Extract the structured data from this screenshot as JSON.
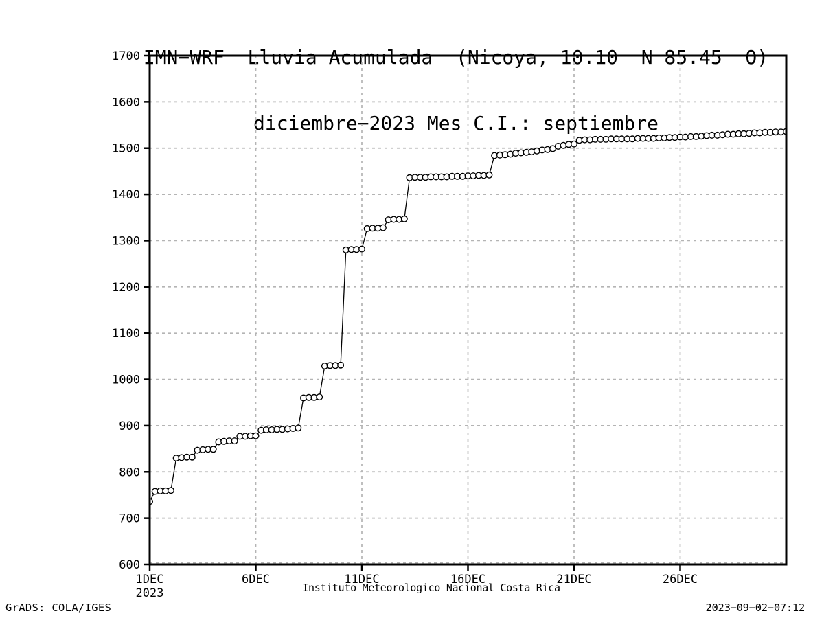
{
  "colors": {
    "foreground": "#000000",
    "background": "#ffffff",
    "gridline": "#b4b4b4",
    "marker_fill": "#ffffff"
  },
  "footer": {
    "credit": "GrADS: COLA/IGES",
    "timestamp": "2023−09−02−07:12"
  },
  "chart_data": {
    "type": "line",
    "title": "IMN−WRF  Lluvia Acumulada  (Nicoya, 10.10  N 85.45  O)",
    "subtitle": "diciembre−2023 Mes C.I.: septiembre",
    "xlabel": "Instituto Meteorologico Nacional Costa Rica",
    "ylabel": "",
    "grid": "dashed",
    "legend": "none",
    "marker": "open-circle",
    "x_axis": {
      "range_days": [
        1,
        31
      ],
      "year": "2023",
      "ticks": [
        {
          "day": 1,
          "label": "1DEC"
        },
        {
          "day": 6,
          "label": "6DEC"
        },
        {
          "day": 11,
          "label": "11DEC"
        },
        {
          "day": 16,
          "label": "16DEC"
        },
        {
          "day": 21,
          "label": "21DEC"
        },
        {
          "day": 26,
          "label": "26DEC"
        }
      ]
    },
    "y_axis": {
      "range": [
        600,
        1700
      ],
      "ticks": [
        600,
        700,
        800,
        900,
        1000,
        1100,
        1200,
        1300,
        1400,
        1500,
        1600,
        1700
      ]
    },
    "series": [
      {
        "name": "lluvia_acumulada_mm",
        "start_day": 1,
        "points_per_day": 4,
        "values": [
          736,
          758,
          759,
          759,
          760,
          830,
          831,
          832,
          832,
          847,
          848,
          849,
          849,
          865,
          866,
          867,
          867,
          877,
          877,
          878,
          878,
          890,
          891,
          891,
          892,
          892,
          893,
          894,
          895,
          960,
          961,
          961,
          962,
          1029,
          1030,
          1030,
          1031,
          1280,
          1281,
          1281,
          1282,
          1326,
          1327,
          1327,
          1328,
          1345,
          1346,
          1346,
          1347,
          1436,
          1437,
          1437,
          1437,
          1438,
          1438,
          1438,
          1438,
          1439,
          1439,
          1439,
          1440,
          1440,
          1441,
          1441,
          1442,
          1484,
          1485,
          1486,
          1487,
          1489,
          1490,
          1491,
          1492,
          1494,
          1496,
          1497,
          1499,
          1504,
          1506,
          1508,
          1509,
          1517,
          1518,
          1518,
          1519,
          1519,
          1519,
          1520,
          1520,
          1520,
          1520,
          1520,
          1521,
          1521,
          1521,
          1521,
          1522,
          1522,
          1523,
          1523,
          1524,
          1524,
          1525,
          1525,
          1526,
          1527,
          1528,
          1528,
          1529,
          1530,
          1530,
          1531,
          1531,
          1532,
          1533,
          1533,
          1534,
          1534,
          1535,
          1535,
          1536
        ]
      }
    ]
  }
}
